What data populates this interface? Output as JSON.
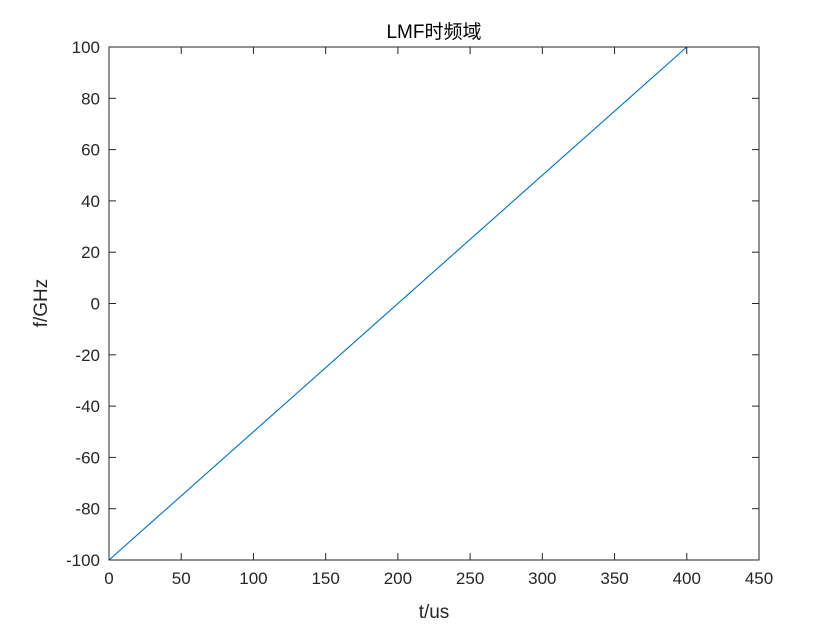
{
  "chart_data": {
    "type": "line",
    "title": "LMF时频域",
    "xlabel": "t/us",
    "ylabel": "f/GHz",
    "xlim": [
      0,
      450
    ],
    "ylim": [
      -100,
      100
    ],
    "xticks": [
      0,
      50,
      100,
      150,
      200,
      250,
      300,
      350,
      400,
      450
    ],
    "yticks": [
      -100,
      -80,
      -60,
      -40,
      -20,
      0,
      20,
      40,
      60,
      80,
      100
    ],
    "xtick_labels": [
      "0",
      "50",
      "100",
      "150",
      "200",
      "250",
      "300",
      "350",
      "400",
      "450"
    ],
    "ytick_labels": [
      "-100",
      "-80",
      "-60",
      "-40",
      "-20",
      "0",
      "20",
      "40",
      "60",
      "80",
      "100"
    ],
    "grid": false,
    "box": true,
    "series": [
      {
        "x": [
          0,
          400
        ],
        "y": [
          -100,
          100
        ],
        "color": "#0072BD"
      }
    ]
  }
}
